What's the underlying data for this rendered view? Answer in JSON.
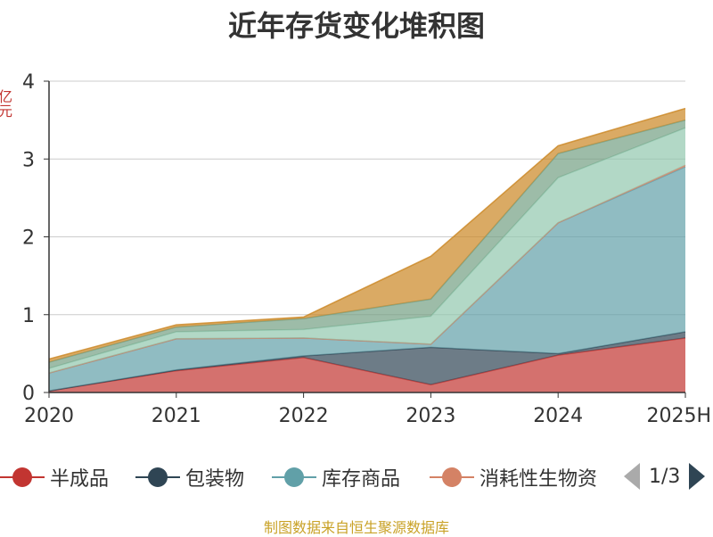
{
  "title": "近年存货变化堆积图",
  "source": "制图数据来自恒生聚源数据库",
  "y_axis_label": "亿元",
  "legend": {
    "items": [
      {
        "name": "半成品",
        "color": "#c23531"
      },
      {
        "name": "包装物",
        "color": "#2f4554"
      },
      {
        "name": "库存商品",
        "color": "#61a0a8"
      },
      {
        "name": "消耗性生物资",
        "color": "#d48265"
      }
    ],
    "page": "1/3"
  },
  "chart_data": {
    "type": "area",
    "stacked": true,
    "title": "近年存货变化堆积图",
    "categories": [
      "2020",
      "2021",
      "2022",
      "2023",
      "2024",
      "2025H"
    ],
    "ylim": [
      0,
      4
    ],
    "yticks": [
      0,
      1,
      2,
      3,
      4
    ],
    "grid": true,
    "legend_position": "bottom",
    "series": [
      {
        "name": "半成品",
        "color": "#c23531",
        "values": [
          0.02,
          0.28,
          0.45,
          0.1,
          0.48,
          0.7
        ]
      },
      {
        "name": "包装物",
        "color": "#2f4554",
        "values": [
          0.0,
          0.01,
          0.02,
          0.48,
          0.02,
          0.08
        ]
      },
      {
        "name": "库存商品",
        "color": "#61a0a8",
        "values": [
          0.23,
          0.4,
          0.23,
          0.04,
          1.68,
          2.12
        ]
      },
      {
        "name": "消耗性生物资",
        "color": "#d48265",
        "values": [
          0.0,
          0.0,
          0.0,
          0.0,
          0.0,
          0.02
        ]
      },
      {
        "color": "#91c7ae",
        "values": [
          0.06,
          0.09,
          0.11,
          0.36,
          0.58,
          0.48
        ]
      },
      {
        "color": "#749f83",
        "values": [
          0.08,
          0.06,
          0.14,
          0.22,
          0.31,
          0.1
        ]
      },
      {
        "color": "#ca8622",
        "values": [
          0.04,
          0.03,
          0.02,
          0.55,
          0.1,
          0.15
        ]
      }
    ]
  }
}
